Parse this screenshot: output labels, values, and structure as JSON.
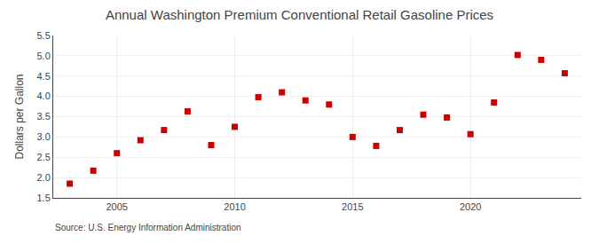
{
  "chart_data": {
    "type": "scatter",
    "title": "Annual Washington Premium Conventional Retail Gasoline Prices",
    "ylabel": "Dollars per Gallon",
    "annotations": [
      "Source: U.S. Energy Information Administration"
    ],
    "x": [
      2003,
      2004,
      2005,
      2006,
      2007,
      2008,
      2009,
      2010,
      2011,
      2012,
      2013,
      2014,
      2015,
      2016,
      2017,
      2018,
      2019,
      2020,
      2021,
      2022,
      2023,
      2024
    ],
    "values": [
      1.85,
      2.17,
      2.6,
      2.92,
      3.17,
      3.63,
      2.8,
      3.25,
      3.98,
      4.1,
      3.9,
      3.8,
      3.0,
      2.78,
      3.17,
      3.55,
      3.48,
      3.07,
      3.85,
      5.02,
      4.9,
      4.57
    ],
    "color": "#cc0000",
    "marker": "square",
    "xlim": [
      2002.3,
      2024.7
    ],
    "xticks": [
      2005,
      2010,
      2015,
      2020
    ],
    "ylim": [
      1.5,
      5.5
    ],
    "yticks": [
      1.5,
      {
        "value": 2.0,
        "label": "2.0"
      },
      2.5,
      {
        "value": 3.0,
        "label": "3.0"
      },
      3.5,
      {
        "value": 4.0,
        "label": "4.0"
      },
      4.5,
      {
        "value": 5.0,
        "label": "5.0"
      },
      5.5
    ],
    "grid": true
  }
}
